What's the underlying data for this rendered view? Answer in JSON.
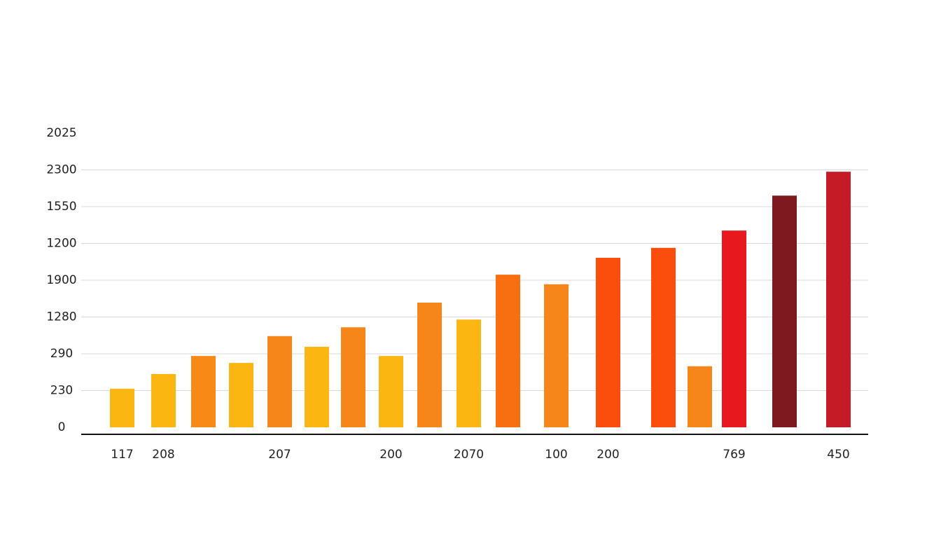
{
  "chart_data": {
    "type": "bar",
    "categories": [
      "117",
      "208",
      null,
      null,
      "207",
      null,
      null,
      "200",
      null,
      "2070",
      null,
      "100",
      "200",
      null,
      null,
      "769",
      null,
      "450"
    ],
    "values": [
      1.05,
      1.45,
      1.94,
      1.75,
      2.48,
      2.19,
      2.72,
      1.94,
      3.39,
      2.93,
      4.15,
      3.89,
      4.61,
      4.88,
      1.66,
      5.35,
      6.3,
      6.95
    ],
    "colors": [
      "#fbb612",
      "#fbb612",
      "#f78a17",
      "#fbb612",
      "#f7861a",
      "#fbb612",
      "#f7861a",
      "#fbb612",
      "#f7861a",
      "#fbb612",
      "#f86f12",
      "#f7861a",
      "#fb4e0c",
      "#fb4e0c",
      "#f7861a",
      "#e8191e",
      "#7e1a1f",
      "#c51b26"
    ],
    "ylim": [
      0,
      8
    ],
    "yticks": [
      0,
      {
        "value": 1,
        "label": "230"
      },
      {
        "value": 2,
        "label": "290"
      },
      {
        "value": 3,
        "label": "1280"
      },
      {
        "value": 4,
        "label": "1900"
      },
      {
        "value": 5,
        "label": "1200"
      },
      {
        "value": 6,
        "label": "1550"
      },
      {
        "value": 7,
        "label": "2300"
      },
      {
        "value": 8,
        "label": "2025"
      }
    ],
    "grid": true
  }
}
